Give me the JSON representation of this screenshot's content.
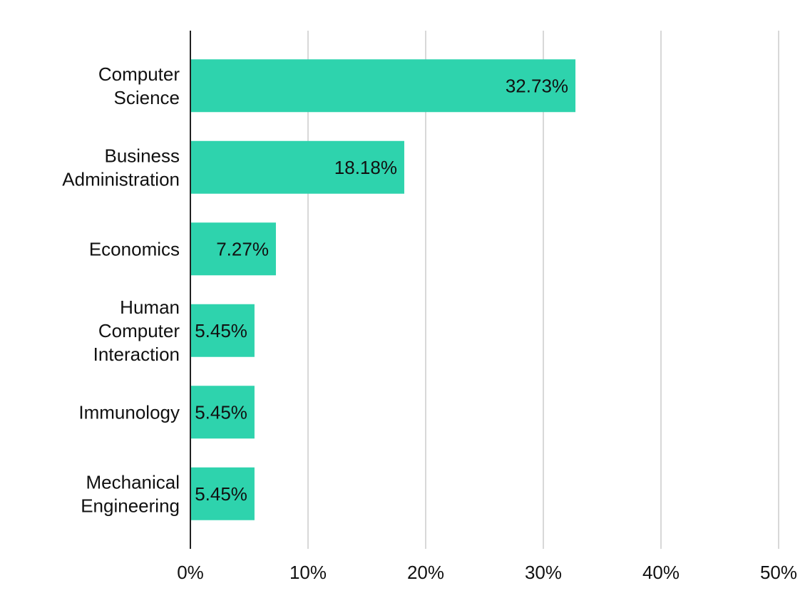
{
  "chart_data": {
    "type": "bar",
    "orientation": "horizontal",
    "categories": [
      [
        "Computer",
        "Science"
      ],
      [
        "Business",
        "Administration"
      ],
      [
        "Economics"
      ],
      [
        "Human",
        "Computer",
        "Interaction"
      ],
      [
        "Immunology"
      ],
      [
        "Mechanical",
        "Engineering"
      ]
    ],
    "values": [
      32.73,
      18.18,
      7.27,
      5.45,
      5.45,
      5.45
    ],
    "value_labels": [
      "32.73%",
      "18.18%",
      "7.27%",
      "5.45%",
      "5.45%",
      "5.45%"
    ],
    "x_ticks": [
      0,
      10,
      20,
      30,
      40,
      50
    ],
    "x_tick_labels": [
      "0%",
      "10%",
      "20%",
      "30%",
      "40%",
      "50%"
    ],
    "xlim": [
      0,
      50
    ],
    "grid": "vertical",
    "legend": "none",
    "bar_color": "#2ed3ad",
    "grid_color": "#cccccc",
    "axis_color": "#222222",
    "title": "",
    "xlabel": "",
    "ylabel": ""
  }
}
